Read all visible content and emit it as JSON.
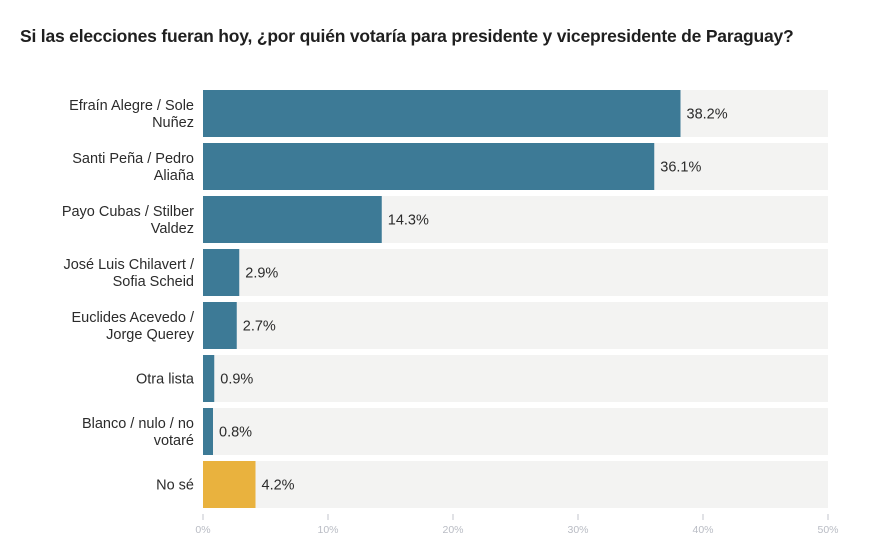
{
  "chart_data": {
    "type": "bar",
    "orientation": "horizontal",
    "title": "Si las elecciones fueran hoy, ¿por quién votaría para presidente y vicepresidente de Paraguay?",
    "xlabel": "",
    "ylabel": "",
    "xlim": [
      0,
      50
    ],
    "xticks": [
      0,
      10,
      20,
      30,
      40,
      50
    ],
    "xtick_labels": [
      "0%",
      "10%",
      "20%",
      "30%",
      "40%",
      "50%"
    ],
    "grid": false,
    "legend": "none",
    "categories": [
      [
        "Efraín Alegre / Sole",
        "Nuñez"
      ],
      [
        "Santi Peña / Pedro",
        "Aliaña"
      ],
      [
        "Payo Cubas / Stilber",
        "Valdez"
      ],
      [
        "José Luis Chilavert /",
        "Sofia Scheid"
      ],
      [
        "Euclides Acevedo /",
        "Jorge Querey"
      ],
      [
        "Otra lista"
      ],
      [
        "Blanco / nulo / no",
        "votaré"
      ],
      [
        "No sé"
      ]
    ],
    "values": [
      38.2,
      36.1,
      14.3,
      2.9,
      2.7,
      0.9,
      0.8,
      4.2
    ],
    "value_labels": [
      "38.2%",
      "36.1%",
      "14.3%",
      "2.9%",
      "2.7%",
      "0.9%",
      "0.8%",
      "4.2%"
    ],
    "bar_colors": [
      "#3d7a96",
      "#3d7a96",
      "#3d7a96",
      "#3d7a96",
      "#3d7a96",
      "#3d7a96",
      "#3d7a96",
      "#e9b23e"
    ],
    "track_color": "#f3f3f2",
    "tick_color": "#c3c6cc"
  }
}
